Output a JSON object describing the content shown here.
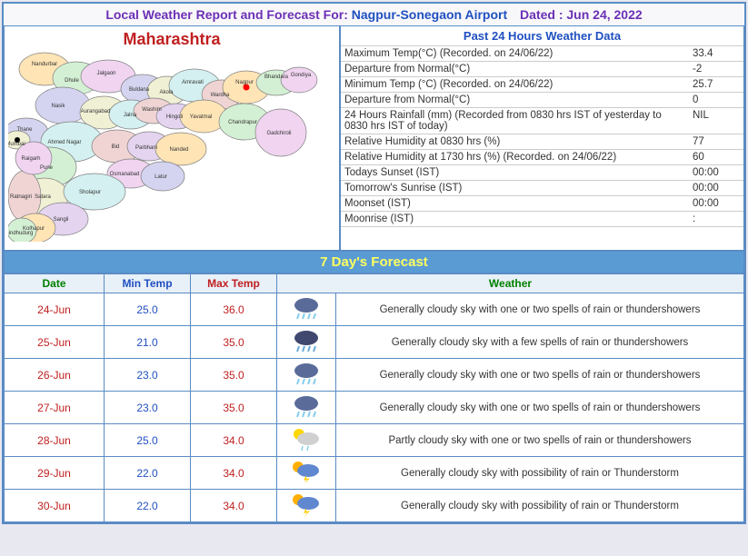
{
  "header": {
    "title_label": "Local Weather Report and Forecast For:",
    "location": "Nagpur-Sonegaon Airport",
    "dated_label": "Dated :",
    "date_val": "Jun 24, 2022"
  },
  "map": {
    "title": "Maharashtra",
    "region_fill": [
      "#ffe4b5",
      "#d4f0d4",
      "#f0d4f0",
      "#d4d4f0",
      "#f0f0d4",
      "#d4f0f0",
      "#f0d4d4",
      "#e4d4f0"
    ],
    "border": "#808080",
    "marker_main": "#ff0000",
    "marker_other": "#000000",
    "districts": [
      "Nandurbar",
      "Dhule",
      "Jalgaon",
      "Buldana",
      "Akola",
      "Amravati",
      "Wardha",
      "Nagpur",
      "Bhandara",
      "Gondiya",
      "Nasik",
      "Aurangabad",
      "Jalna",
      "Washim",
      "Hingoli",
      "Yavatmal",
      "Chandrapur",
      "Gadchiroli",
      "Thane",
      "Mumbai",
      "Ahmed Nagar",
      "Bid",
      "Parbhani",
      "Nanded",
      "Pune",
      "Osmanabad",
      "Latur",
      "Satara",
      "Sholapur",
      "Ratnagiri",
      "Sangli",
      "Kolhapur",
      "Sindhudurg",
      "Raigarh"
    ]
  },
  "past24": {
    "title": "Past 24 Hours Weather Data",
    "rows": [
      {
        "label": "Maximum Temp(°C) (Recorded. on 24/06/22)",
        "value": "33.4"
      },
      {
        "label": "Departure from Normal(°C)",
        "value": "-2"
      },
      {
        "label": "Minimum Temp (°C) (Recorded. on 24/06/22)",
        "value": "25.7"
      },
      {
        "label": "Departure from Normal(°C)",
        "value": "0"
      },
      {
        "label": "24 Hours Rainfall (mm) (Recorded from 0830 hrs IST of yesterday to 0830 hrs IST of today)",
        "value": "NIL"
      },
      {
        "label": "Relative Humidity at 0830 hrs (%)",
        "value": "77"
      },
      {
        "label": "Relative Humidity at 1730 hrs (%) (Recorded. on 24/06/22)",
        "value": "60"
      },
      {
        "label": "Todays Sunset (IST)",
        "value": "00:00"
      },
      {
        "label": "Tomorrow's Sunrise (IST)",
        "value": "00:00"
      },
      {
        "label": "Moonset (IST)",
        "value": "00:00"
      },
      {
        "label": "Moonrise (IST)",
        "value": ":"
      }
    ]
  },
  "forecast": {
    "title": "7 Day's Forecast",
    "headers": {
      "date": "Date",
      "min": "Min Temp",
      "max": "Max Temp",
      "weather": "Weather"
    },
    "rows": [
      {
        "date": "24-Jun",
        "min": "25.0",
        "max": "36.0",
        "icon": "rain1",
        "weather": "Generally cloudy sky with one or two spells of rain or thundershowers"
      },
      {
        "date": "25-Jun",
        "min": "21.0",
        "max": "35.0",
        "icon": "rain2",
        "weather": "Generally cloudy sky with a few spells of rain or thundershowers"
      },
      {
        "date": "26-Jun",
        "min": "23.0",
        "max": "35.0",
        "icon": "rain1",
        "weather": "Generally cloudy sky with one or two spells of rain or thundershowers"
      },
      {
        "date": "27-Jun",
        "min": "23.0",
        "max": "35.0",
        "icon": "rain1",
        "weather": "Generally cloudy sky with one or two spells of rain or thundershowers"
      },
      {
        "date": "28-Jun",
        "min": "25.0",
        "max": "34.0",
        "icon": "partly",
        "weather": "Partly cloudy sky with one or two spells of rain or thundershowers"
      },
      {
        "date": "29-Jun",
        "min": "22.0",
        "max": "34.0",
        "icon": "thunder",
        "weather": "Generally cloudy sky with possibility of rain or Thunderstorm"
      },
      {
        "date": "30-Jun",
        "min": "22.0",
        "max": "34.0",
        "icon": "thunder",
        "weather": "Generally cloudy sky with possibility of rain or Thunderstorm"
      }
    ]
  },
  "icons": {
    "rain1": {
      "cloud": "#5a6b9a",
      "drops": "#87ceeb"
    },
    "rain2": {
      "cloud": "#404870",
      "drops": "#6babdb"
    },
    "partly": {
      "cloud": "#d0d0d0",
      "sun": "#ffd700"
    },
    "thunder": {
      "cloud": "#6088d0",
      "sun": "#ffb000"
    }
  }
}
